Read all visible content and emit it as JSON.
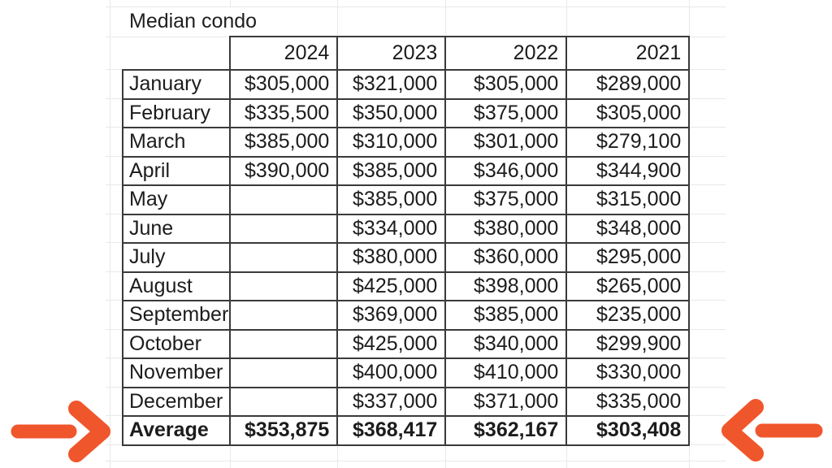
{
  "sheet": {
    "title": "Median condo",
    "year_columns": [
      "2024",
      "2023",
      "2022",
      "2021"
    ],
    "rows": [
      {
        "label": "January",
        "values": [
          "$305,000",
          "$321,000",
          "$305,000",
          "$289,000"
        ]
      },
      {
        "label": "February",
        "values": [
          "$335,500",
          "$350,000",
          "$375,000",
          "$305,000"
        ]
      },
      {
        "label": "March",
        "values": [
          "$385,000",
          "$310,000",
          "$301,000",
          "$279,100"
        ]
      },
      {
        "label": "April",
        "values": [
          "$390,000",
          "$385,000",
          "$346,000",
          "$344,900"
        ]
      },
      {
        "label": "May",
        "values": [
          "",
          "$385,000",
          "$375,000",
          "$315,000"
        ]
      },
      {
        "label": "June",
        "values": [
          "",
          "$334,000",
          "$380,000",
          "$348,000"
        ]
      },
      {
        "label": "July",
        "values": [
          "",
          "$380,000",
          "$360,000",
          "$295,000"
        ]
      },
      {
        "label": "August",
        "values": [
          "",
          "$425,000",
          "$398,000",
          "$265,000"
        ]
      },
      {
        "label": "September",
        "values": [
          "",
          "$369,000",
          "$385,000",
          "$235,000"
        ]
      },
      {
        "label": "October",
        "values": [
          "",
          "$425,000",
          "$340,000",
          "$299,900"
        ]
      },
      {
        "label": "November",
        "values": [
          "",
          "$400,000",
          "$410,000",
          "$330,000"
        ]
      },
      {
        "label": "December",
        "values": [
          "",
          "$337,000",
          "$371,000",
          "$335,000"
        ]
      },
      {
        "label": "Average",
        "values": [
          "$353,875",
          "$368,417",
          "$362,167",
          "$303,408"
        ],
        "bold": true
      }
    ]
  },
  "annotations": {
    "left_arrow_points_to": "Average row",
    "right_arrow_points_to": "Average row"
  },
  "colors": {
    "arrow": "#F0562C",
    "table_border": "#3A3A3A",
    "gridline": "#E9E9E9",
    "text": "#1D1D1D"
  }
}
